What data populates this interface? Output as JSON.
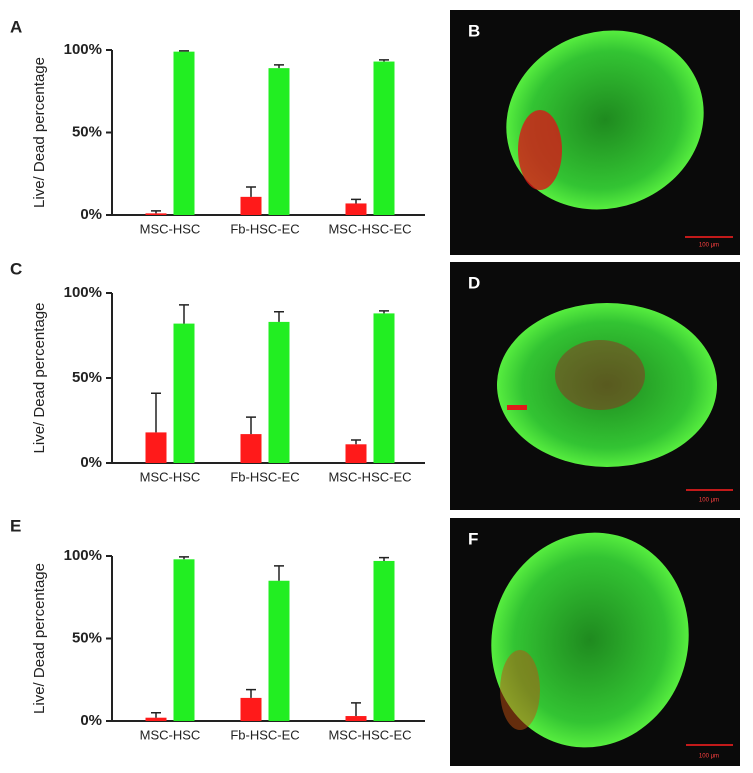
{
  "chart_data": [
    {
      "type": "bar",
      "panel": "A",
      "ylabel": "Live/ Dead  percentage",
      "categories": [
        "MSC-HSC",
        "Fb-HSC-EC",
        "MSC-HSC-EC"
      ],
      "series": [
        {
          "color": "#ff1a1a",
          "values": [
            1,
            11,
            7
          ],
          "errors": [
            1.5,
            6,
            2.5
          ]
        },
        {
          "color": "#22ee22",
          "values": [
            99,
            89,
            93
          ],
          "errors": [
            0.5,
            2,
            1
          ]
        }
      ],
      "ylim": [
        0,
        100
      ],
      "yticks": [
        {
          "value": 0,
          "label": "0%"
        },
        {
          "value": 50,
          "label": "50%"
        },
        {
          "value": 100,
          "label": "100%"
        }
      ]
    },
    {
      "type": "bar",
      "panel": "C",
      "ylabel": "Live/ Dead  percentage",
      "categories": [
        "MSC-HSC",
        "Fb-HSC-EC",
        "MSC-HSC-EC"
      ],
      "series": [
        {
          "color": "#ff1a1a",
          "values": [
            18,
            17,
            11
          ],
          "errors": [
            23,
            10,
            2.5
          ]
        },
        {
          "color": "#22ee22",
          "values": [
            82,
            83,
            88
          ],
          "errors": [
            11,
            6,
            1.5
          ]
        }
      ],
      "ylim": [
        0,
        100
      ],
      "yticks": [
        {
          "value": 0,
          "label": "0%"
        },
        {
          "value": 50,
          "label": "50%"
        },
        {
          "value": 100,
          "label": "100%"
        }
      ]
    },
    {
      "type": "bar",
      "panel": "E",
      "ylabel": "Live/ Dead  percentage",
      "categories": [
        "MSC-HSC",
        "Fb-HSC-EC",
        "MSC-HSC-EC"
      ],
      "series": [
        {
          "color": "#ff1a1a",
          "values": [
            2,
            14,
            3
          ],
          "errors": [
            3,
            5,
            8
          ]
        },
        {
          "color": "#22ee22",
          "values": [
            98,
            85,
            97
          ],
          "errors": [
            1.5,
            9,
            2
          ]
        }
      ],
      "ylim": [
        0,
        100
      ],
      "yticks": [
        {
          "value": 0,
          "label": "0%"
        },
        {
          "value": 50,
          "label": "50%"
        },
        {
          "value": 100,
          "label": "100%"
        }
      ]
    }
  ],
  "images": [
    {
      "panel": "B",
      "scale_bar": "100 μm"
    },
    {
      "panel": "D",
      "scale_bar": "100 μm"
    },
    {
      "panel": "F",
      "scale_bar": "100 μm"
    }
  ]
}
